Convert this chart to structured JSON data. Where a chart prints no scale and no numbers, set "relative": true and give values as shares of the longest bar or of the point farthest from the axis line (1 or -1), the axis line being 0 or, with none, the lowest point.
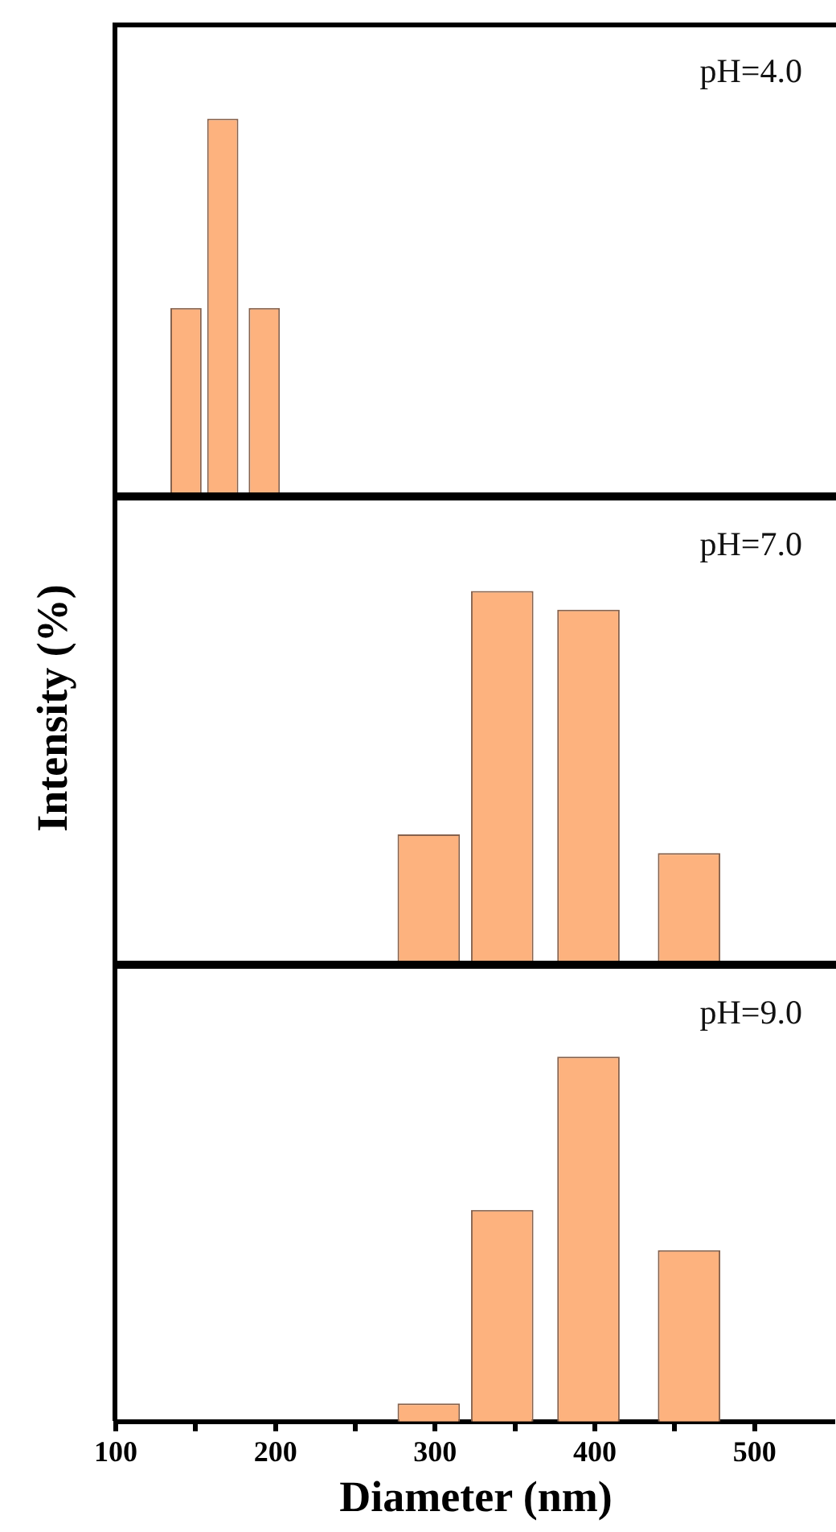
{
  "chart_data": [
    {
      "type": "bar",
      "x": [
        144,
        167,
        193
      ],
      "values": [
        0.5,
        1,
        0.5
      ],
      "color": "#fdb27e",
      "relative": true,
      "xlim": [
        100,
        550
      ],
      "tick_labels": false,
      "annotations": [
        "pH=4.0"
      ]
    },
    {
      "type": "bar",
      "x": [
        296,
        342,
        396,
        459
      ],
      "values": [
        0.35,
        1,
        0.95,
        0.3
      ],
      "color": "#fdb27e",
      "relative": true,
      "xlim": [
        100,
        550
      ],
      "tick_labels": false,
      "annotations": [
        "pH=7.0"
      ],
      "ylabel": "Intensity (%)"
    },
    {
      "type": "bar",
      "x": [
        296,
        342,
        396,
        459
      ],
      "values": [
        0.05,
        0.58,
        1,
        0.47
      ],
      "color": "#fdb27e",
      "relative": true,
      "xlim": [
        100,
        550
      ],
      "xticks": [
        100,
        {
          "value": 150,
          "label": null
        },
        200,
        {
          "value": 250,
          "label": null
        },
        300,
        {
          "value": 350,
          "label": null
        },
        400,
        {
          "value": 450,
          "label": null
        },
        500
      ],
      "tick_labels": "x",
      "annotations": [
        "pH=9.0"
      ],
      "xlabel": "Diameter (nm)"
    }
  ]
}
